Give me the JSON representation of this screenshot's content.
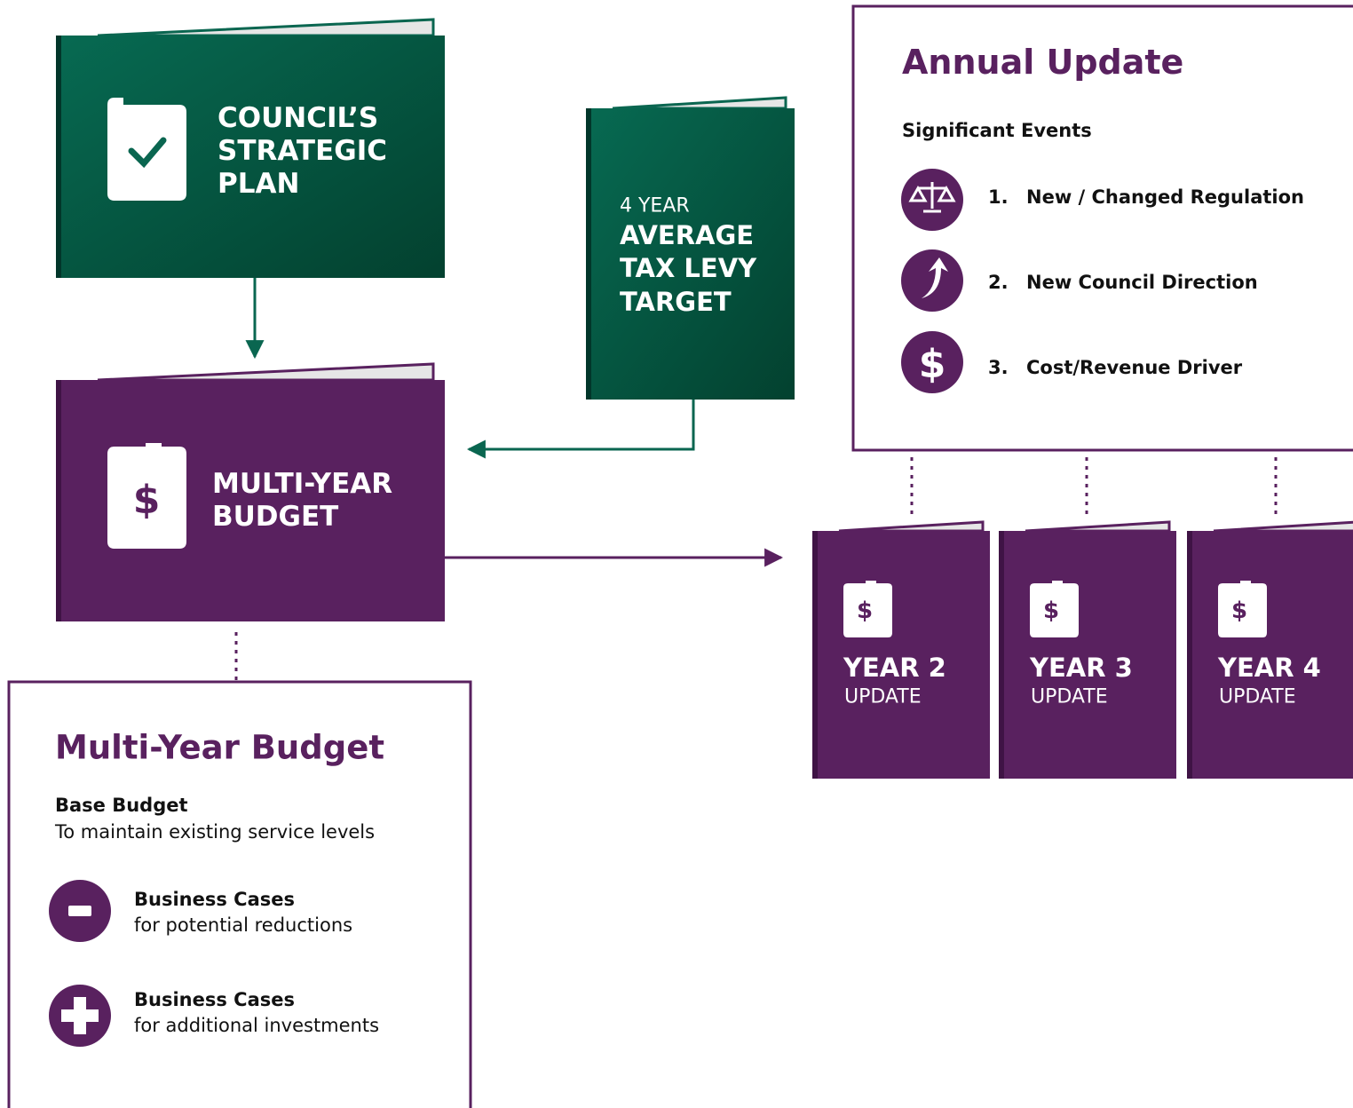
{
  "books": {
    "strategic_plan": {
      "lines": [
        "COUNCIL’S",
        "STRATEGIC",
        "PLAN"
      ]
    },
    "tax_levy": {
      "prefix": "4 YEAR",
      "lines": [
        "AVERAGE",
        "TAX LEVY",
        "TARGET"
      ]
    },
    "multi_year_budget": {
      "icon": "$",
      "lines": [
        "MULTI-YEAR",
        "BUDGET"
      ]
    },
    "updates": [
      {
        "icon": "$",
        "title": "YEAR 2",
        "subtitle": "UPDATE"
      },
      {
        "icon": "$",
        "title": "YEAR 3",
        "subtitle": "UPDATE"
      },
      {
        "icon": "$",
        "title": "YEAR 4",
        "subtitle": "UPDATE"
      }
    ]
  },
  "annual_update": {
    "title": "Annual Update",
    "subtitle": "Significant Events",
    "events": [
      {
        "number": "1.",
        "label": "New / Changed Regulation"
      },
      {
        "number": "2.",
        "label": "New Council Direction"
      },
      {
        "number": "3.",
        "label": "Cost/Revenue Driver",
        "icon": "$"
      }
    ]
  },
  "budget_panel": {
    "title": "Multi-Year Budget",
    "base": {
      "title": "Base Budget",
      "text": "To maintain existing service levels"
    },
    "cases": [
      {
        "title": "Business Cases",
        "text": "for potential reductions"
      },
      {
        "title": "Business Cases",
        "text": "for additional investments"
      }
    ]
  }
}
